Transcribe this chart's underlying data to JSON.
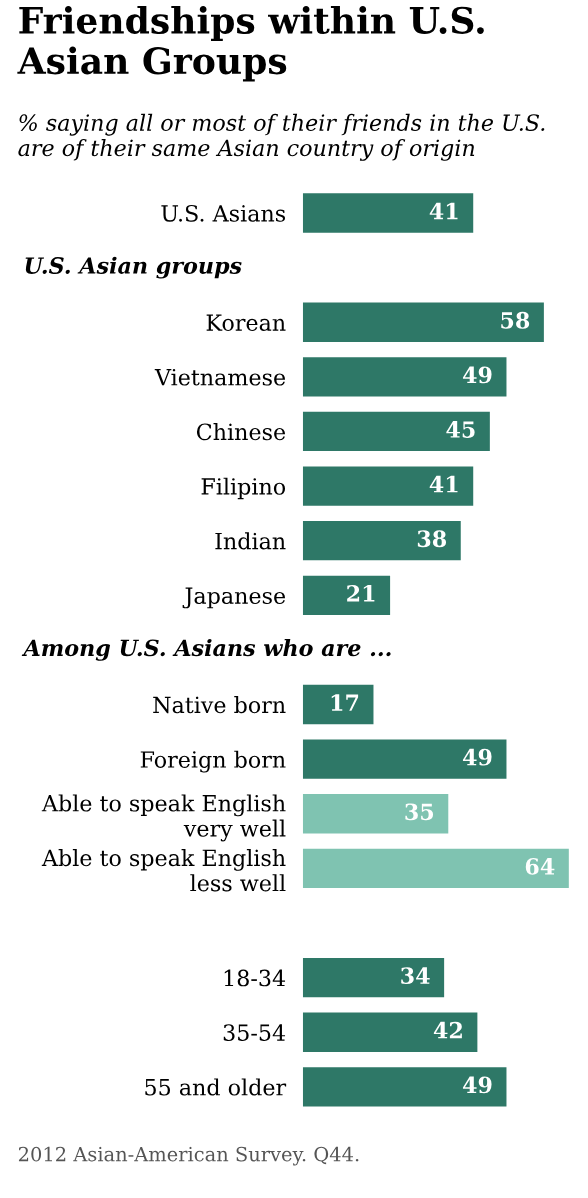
{
  "chart_data": {
    "type": "bar",
    "orientation": "horizontal",
    "title": "Friendships within U.S. Asian Groups",
    "subtitle": "% saying all or most of their friends in the U.S. are of their same Asian country of origin",
    "categories": [
      "U.S. Asians",
      null,
      "Korean",
      "Vietnamese",
      "Chinese",
      "Filipino",
      "Indian",
      "Japanese",
      null,
      "Native born",
      "Foreign born",
      "Able to speak English\nvery well",
      "Able to speak English\nless well",
      null,
      "18-34",
      "35-54",
      "55 and older"
    ],
    "values": [
      41,
      null,
      58,
      49,
      45,
      41,
      38,
      21,
      null,
      17,
      49,
      35,
      64,
      null,
      34,
      42,
      49
    ],
    "colors": [
      "#2e7867",
      null,
      "#2e7867",
      "#2e7867",
      "#2e7867",
      "#2e7867",
      "#2e7867",
      "#2e7867",
      null,
      "#2e7867",
      "#2e7867",
      "#7fc3b1",
      "#7fc3b1",
      null,
      "#2e7867",
      "#2e7867",
      "#2e7867"
    ],
    "tick_labels": "y",
    "grid": false,
    "legend": false,
    "data_labels": true,
    "annotations": [
      "U.S. Asian groups",
      "Among U.S. Asians who are ...",
      "2012 Asian-American Survey. Q44."
    ]
  }
}
